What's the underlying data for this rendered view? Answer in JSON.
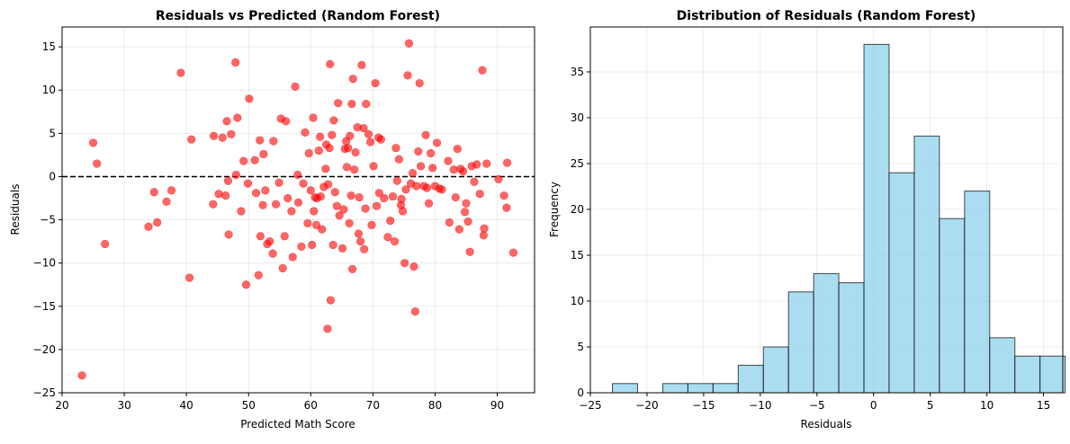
{
  "chart_data": [
    {
      "type": "scatter",
      "title": "Residuals vs Predicted (Random Forest)",
      "xlabel": "Predicted Math Score",
      "ylabel": "Residuals",
      "xlim": [
        20,
        96
      ],
      "ylim": [
        -25,
        17.3
      ],
      "xticks": [
        20,
        30,
        40,
        50,
        60,
        70,
        80,
        90
      ],
      "yticks": [
        -25,
        -20,
        -15,
        -10,
        -5,
        0,
        5,
        10,
        15
      ],
      "grid": true,
      "reference_line": {
        "y": 0,
        "style": "dashed",
        "color": "#000000"
      },
      "marker_color": "#ff0000",
      "marker_alpha": 0.6,
      "points": [
        [
          23.2,
          -23.0
        ],
        [
          25.0,
          3.9
        ],
        [
          25.6,
          1.5
        ],
        [
          26.9,
          -7.8
        ],
        [
          33.9,
          -5.8
        ],
        [
          34.8,
          -1.8
        ],
        [
          35.3,
          -5.3
        ],
        [
          36.8,
          -2.9
        ],
        [
          37.6,
          -1.6
        ],
        [
          39.1,
          12.0
        ],
        [
          40.5,
          -11.7
        ],
        [
          40.8,
          4.3
        ],
        [
          44.3,
          -3.2
        ],
        [
          44.4,
          4.7
        ],
        [
          45.2,
          -2.0
        ],
        [
          45.8,
          4.5
        ],
        [
          46.3,
          -2.2
        ],
        [
          46.5,
          6.4
        ],
        [
          46.7,
          -0.5
        ],
        [
          46.8,
          -6.7
        ],
        [
          47.2,
          4.9
        ],
        [
          47.9,
          13.2
        ],
        [
          48.0,
          0.2
        ],
        [
          48.2,
          6.8
        ],
        [
          48.8,
          -4.0
        ],
        [
          49.2,
          1.8
        ],
        [
          49.6,
          -12.5
        ],
        [
          49.9,
          -0.8
        ],
        [
          50.1,
          9.0
        ],
        [
          51.0,
          1.9
        ],
        [
          51.2,
          -1.9
        ],
        [
          51.6,
          -11.4
        ],
        [
          51.8,
          4.2
        ],
        [
          51.9,
          -6.9
        ],
        [
          52.3,
          -3.3
        ],
        [
          52.4,
          2.6
        ],
        [
          52.7,
          -1.6
        ],
        [
          53.0,
          -7.8
        ],
        [
          53.4,
          -7.5
        ],
        [
          53.9,
          -8.9
        ],
        [
          54.0,
          4.1
        ],
        [
          54.4,
          -3.2
        ],
        [
          54.9,
          -0.7
        ],
        [
          55.2,
          6.7
        ],
        [
          55.5,
          -10.6
        ],
        [
          55.8,
          -6.9
        ],
        [
          56.0,
          6.4
        ],
        [
          56.3,
          -2.5
        ],
        [
          56.9,
          -4.0
        ],
        [
          57.1,
          -9.3
        ],
        [
          57.5,
          10.4
        ],
        [
          57.9,
          0.2
        ],
        [
          58.0,
          -3.0
        ],
        [
          58.5,
          -8.1
        ],
        [
          58.8,
          -0.8
        ],
        [
          59.1,
          5.1
        ],
        [
          59.5,
          -5.4
        ],
        [
          59.7,
          2.7
        ],
        [
          60.0,
          -1.6
        ],
        [
          60.2,
          -7.9
        ],
        [
          60.4,
          6.8
        ],
        [
          60.5,
          -4.0
        ],
        [
          60.7,
          -2.4
        ],
        [
          60.9,
          -5.6
        ],
        [
          61.0,
          -2.5
        ],
        [
          61.3,
          3.0
        ],
        [
          61.5,
          4.6
        ],
        [
          61.6,
          -2.3
        ],
        [
          61.8,
          -6.1
        ],
        [
          62.1,
          -1.2
        ],
        [
          62.4,
          0.9
        ],
        [
          62.5,
          3.7
        ],
        [
          62.7,
          -17.6
        ],
        [
          62.8,
          -0.9
        ],
        [
          63.0,
          3.3
        ],
        [
          63.1,
          13.0
        ],
        [
          63.2,
          -14.3
        ],
        [
          63.4,
          4.8
        ],
        [
          63.6,
          -7.9
        ],
        [
          63.7,
          6.5
        ],
        [
          63.9,
          -1.8
        ],
        [
          64.2,
          -3.4
        ],
        [
          64.4,
          8.5
        ],
        [
          64.6,
          -4.5
        ],
        [
          65.1,
          -8.3
        ],
        [
          65.3,
          -3.8
        ],
        [
          65.5,
          3.2
        ],
        [
          65.7,
          4.1
        ],
        [
          65.8,
          1.1
        ],
        [
          66.0,
          3.3
        ],
        [
          66.2,
          -5.4
        ],
        [
          66.3,
          4.7
        ],
        [
          66.5,
          -2.2
        ],
        [
          66.6,
          8.4
        ],
        [
          66.7,
          -10.7
        ],
        [
          66.8,
          11.3
        ],
        [
          67.0,
          0.8
        ],
        [
          67.2,
          2.8
        ],
        [
          67.5,
          5.7
        ],
        [
          67.7,
          -6.6
        ],
        [
          67.8,
          -2.4
        ],
        [
          68.0,
          -7.5
        ],
        [
          68.2,
          12.9
        ],
        [
          68.5,
          5.6
        ],
        [
          68.6,
          -8.4
        ],
        [
          68.8,
          -3.7
        ],
        [
          68.9,
          8.4
        ],
        [
          69.3,
          4.9
        ],
        [
          69.6,
          4.0
        ],
        [
          69.8,
          -5.6
        ],
        [
          70.1,
          1.2
        ],
        [
          70.4,
          10.8
        ],
        [
          70.6,
          -3.4
        ],
        [
          70.9,
          4.5
        ],
        [
          71.0,
          -1.9
        ],
        [
          71.3,
          4.3
        ],
        [
          71.8,
          -2.5
        ],
        [
          72.4,
          -7.0
        ],
        [
          72.8,
          -5.1
        ],
        [
          73.2,
          -2.3
        ],
        [
          73.5,
          -7.5
        ],
        [
          73.7,
          3.3
        ],
        [
          73.9,
          -0.5
        ],
        [
          74.2,
          2.0
        ],
        [
          74.5,
          -3.3
        ],
        [
          74.6,
          -2.6
        ],
        [
          74.8,
          -4.0
        ],
        [
          75.1,
          -10.0
        ],
        [
          75.3,
          -1.5
        ],
        [
          75.6,
          11.7
        ],
        [
          75.8,
          15.4
        ],
        [
          76.1,
          -0.8
        ],
        [
          76.4,
          0.4
        ],
        [
          76.6,
          -10.4
        ],
        [
          76.8,
          -15.6
        ],
        [
          77.0,
          -1.1
        ],
        [
          77.3,
          2.9
        ],
        [
          77.5,
          10.8
        ],
        [
          77.7,
          1.2
        ],
        [
          78.2,
          -1.1
        ],
        [
          78.5,
          4.8
        ],
        [
          78.7,
          -1.3
        ],
        [
          79.0,
          -3.1
        ],
        [
          79.3,
          2.7
        ],
        [
          79.6,
          1.0
        ],
        [
          80.0,
          -1.1
        ],
        [
          80.3,
          3.9
        ],
        [
          80.7,
          -1.4
        ],
        [
          81.1,
          -1.5
        ],
        [
          82.1,
          1.8
        ],
        [
          82.3,
          -5.3
        ],
        [
          83.0,
          0.8
        ],
        [
          83.3,
          -2.4
        ],
        [
          83.6,
          3.2
        ],
        [
          83.9,
          -6.1
        ],
        [
          84.1,
          0.9
        ],
        [
          84.5,
          0.6
        ],
        [
          84.8,
          -4.1
        ],
        [
          85.0,
          -3.1
        ],
        [
          85.3,
          -5.2
        ],
        [
          85.6,
          -8.7
        ],
        [
          85.9,
          1.2
        ],
        [
          86.3,
          -0.6
        ],
        [
          86.7,
          1.4
        ],
        [
          87.2,
          -2.0
        ],
        [
          87.6,
          12.3
        ],
        [
          87.9,
          -6.0
        ],
        [
          87.8,
          -6.8
        ],
        [
          88.3,
          1.5
        ],
        [
          90.2,
          -0.3
        ],
        [
          91.1,
          -2.2
        ],
        [
          91.5,
          -3.6
        ],
        [
          91.6,
          1.6
        ],
        [
          92.6,
          -8.8
        ]
      ]
    },
    {
      "type": "bar",
      "title": "Distribution of Residuals (Random Forest)",
      "xlabel": "Residuals",
      "ylabel": "Frequency",
      "xlim": [
        -25,
        16.7
      ],
      "ylim": [
        0,
        39.9
      ],
      "xticks": [
        -25,
        -20,
        -15,
        -10,
        -5,
        0,
        5,
        10,
        15
      ],
      "yticks": [
        0,
        5,
        10,
        15,
        20,
        25,
        30,
        35
      ],
      "grid": true,
      "bar_color": "#87ceeb",
      "bar_alpha": 0.7,
      "edge_color": "#000000",
      "bin_edges": [
        -23.05,
        -20.83,
        -18.61,
        -16.39,
        -14.17,
        -11.95,
        -9.73,
        -7.51,
        -5.29,
        -3.07,
        -0.85,
        1.37,
        3.59,
        5.81,
        8.03,
        10.25,
        12.47,
        14.69,
        16.91
      ],
      "bins": [
        {
          "x0": -23.05,
          "x1": -20.83,
          "count": 1
        },
        {
          "x0": -20.83,
          "x1": -18.61,
          "count": 0
        },
        {
          "x0": -18.61,
          "x1": -16.39,
          "count": 1
        },
        {
          "x0": -16.39,
          "x1": -14.17,
          "count": 1
        },
        {
          "x0": -14.17,
          "x1": -11.95,
          "count": 1
        },
        {
          "x0": -11.95,
          "x1": -9.73,
          "count": 3
        },
        {
          "x0": -9.73,
          "x1": -7.51,
          "count": 5
        },
        {
          "x0": -7.51,
          "x1": -5.29,
          "count": 11
        },
        {
          "x0": -5.29,
          "x1": -3.07,
          "count": 13
        },
        {
          "x0": -3.07,
          "x1": -0.85,
          "count": 12
        },
        {
          "x0": -0.85,
          "x1": 1.37,
          "count": 38
        },
        {
          "x0": 1.37,
          "x1": 3.59,
          "count": 24
        },
        {
          "x0": 3.59,
          "x1": 5.81,
          "count": 28
        },
        {
          "x0": 5.81,
          "x1": 8.03,
          "count": 19
        },
        {
          "x0": 8.03,
          "x1": 10.25,
          "count": 22
        },
        {
          "x0": 10.25,
          "x1": 12.47,
          "count": 6
        },
        {
          "x0": 12.47,
          "x1": 14.69,
          "count": 4
        },
        {
          "x0": 14.69,
          "x1": 16.91,
          "count": 4
        }
      ]
    }
  ]
}
